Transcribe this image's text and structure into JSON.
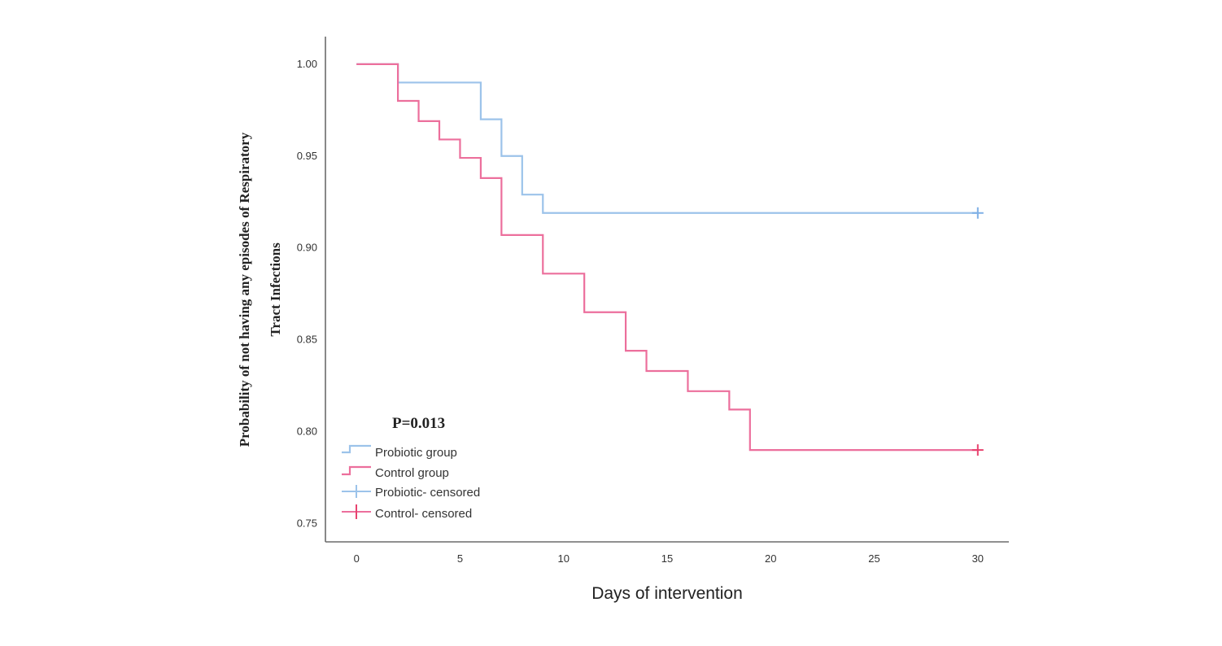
{
  "chart_data": {
    "type": "line",
    "title": "",
    "xlabel": "Days of intervention",
    "ylabel_lines": [
      "Probability of not having any episodes of Respiratory",
      "Tract Infections"
    ],
    "xlim": [
      -1.5,
      31.5
    ],
    "ylim": [
      0.74,
      1.015
    ],
    "xticks": [
      0,
      5,
      10,
      15,
      20,
      25,
      30
    ],
    "xtick_labels": [
      "0",
      "5",
      "10",
      "15",
      "20",
      "25",
      "30"
    ],
    "yticks": [
      0.75,
      0.8,
      0.85,
      0.9,
      0.95,
      1.0
    ],
    "ytick_labels": [
      "0.75",
      "0.80",
      "0.85",
      "0.90",
      "0.95",
      "1.00"
    ],
    "grid": false,
    "annotation": "P=0.013",
    "legend_position": "bottom-left",
    "series": [
      {
        "name": "Probiotic group",
        "color": "#9cc3ea",
        "step": true,
        "x": [
          0,
          2,
          6,
          7,
          8,
          9,
          30
        ],
        "y": [
          1.0,
          0.99,
          0.97,
          0.95,
          0.929,
          0.919,
          0.919
        ]
      },
      {
        "name": "Control group",
        "color": "#ec6f9c",
        "step": true,
        "x": [
          0,
          2,
          3,
          4,
          5,
          6,
          7,
          9,
          11,
          13,
          14,
          16,
          18,
          19,
          30
        ],
        "y": [
          1.0,
          0.98,
          0.969,
          0.959,
          0.949,
          0.938,
          0.907,
          0.886,
          0.865,
          0.844,
          0.833,
          0.822,
          0.812,
          0.79,
          0.79
        ]
      }
    ],
    "censored": [
      {
        "name": "Probiotic- censored",
        "color": "#7fb0e6",
        "x": [
          30
        ],
        "y": [
          0.919
        ]
      },
      {
        "name": "Control- censored",
        "color": "#e8436f",
        "x": [
          30
        ],
        "y": [
          0.79
        ]
      }
    ]
  }
}
